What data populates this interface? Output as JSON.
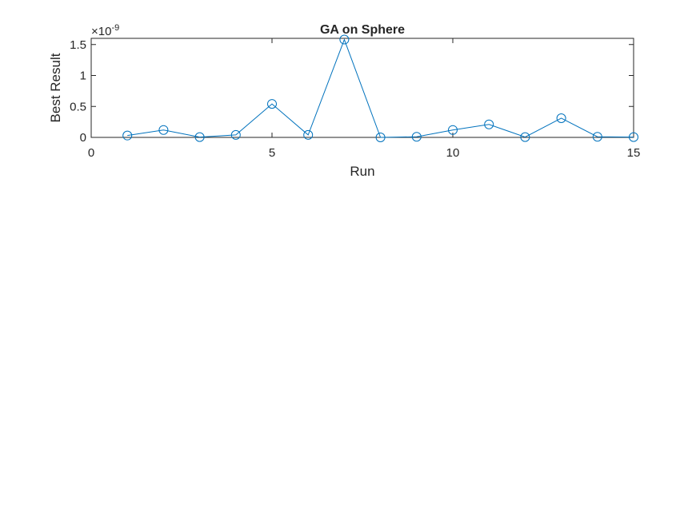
{
  "chart_data": {
    "type": "line",
    "title": "GA on Sphere",
    "xlabel": "Run",
    "ylabel": "Best Result",
    "exponent_label": "×10",
    "exponent_power": "-9",
    "xlim": [
      0,
      15
    ],
    "ylim": [
      0,
      1.6
    ],
    "xticks": [
      0,
      5,
      10,
      15
    ],
    "xtick_labels": [
      "0",
      "5",
      "10",
      "15"
    ],
    "yticks": [
      0,
      0.5,
      1,
      1.5
    ],
    "ytick_labels": [
      "0",
      "0.5",
      "1",
      "1.5"
    ],
    "grid": false,
    "marker": "circle",
    "colors": {
      "series": "#0072BD",
      "axes": "#262626",
      "background": "#ffffff"
    },
    "series": [
      {
        "x": [
          1,
          2,
          3,
          4,
          5,
          6,
          7,
          8,
          9,
          10,
          11,
          12,
          13,
          14,
          15
        ],
        "y": [
          0.03,
          0.12,
          0.005,
          0.04,
          0.54,
          0.04,
          1.58,
          0.0,
          0.01,
          0.12,
          0.21,
          0.005,
          0.31,
          0.01,
          0.005
        ]
      }
    ]
  }
}
